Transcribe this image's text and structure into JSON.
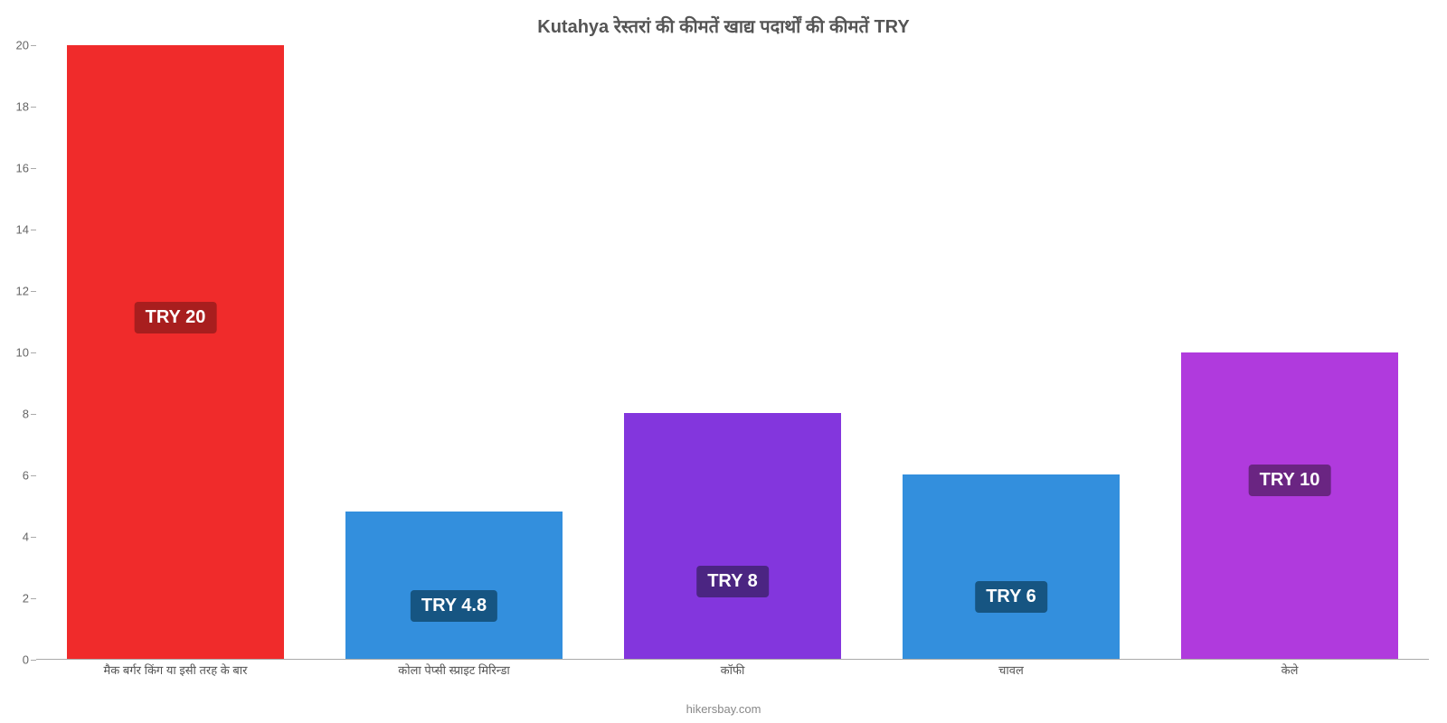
{
  "chart": {
    "type": "bar",
    "title": "Kutahya रेस्तरां की कीमतें खाद्य पदार्थों की कीमतें TRY",
    "title_fontsize": 20,
    "ylim": [
      0,
      20
    ],
    "yticks": [
      0,
      2,
      4,
      6,
      8,
      10,
      12,
      14,
      16,
      18,
      20
    ],
    "background_color": "#ffffff",
    "axis_color": "#aaaaaa",
    "tick_text_color": "#666666",
    "bar_width": 0.78,
    "categories": [
      "मैक बर्गर किंग या इसी तरह के बार",
      "कोला पेप्सी स्प्राइट मिरिन्डा",
      "कॉफी",
      "चावल",
      "केले"
    ],
    "values": [
      20,
      4.8,
      8,
      6,
      10
    ],
    "bar_colors": [
      "#f02b2b",
      "#338fdd",
      "#8336dd",
      "#338fdd",
      "#b03add"
    ],
    "value_badges": [
      "TRY 20",
      "TRY 4.8",
      "TRY 8",
      "TRY 6",
      "TRY 10"
    ],
    "badge_colors": [
      "#a81e1e",
      "#165582",
      "#4b2582",
      "#165582",
      "#6a2582"
    ],
    "badge_fontsize": 20,
    "category_label_fontsize": 13,
    "credit": "hikersbay.com"
  }
}
